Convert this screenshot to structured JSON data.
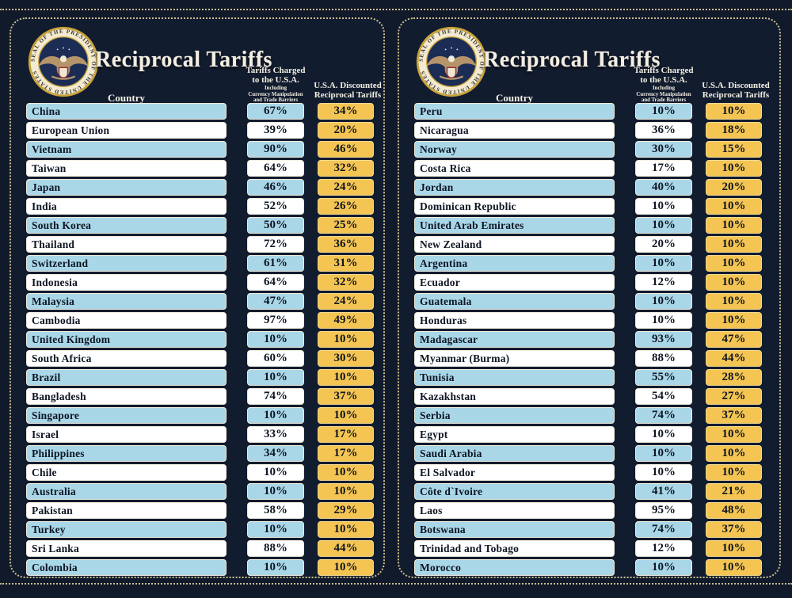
{
  "board": {
    "title": "Reciprocal Tariffs",
    "col_country": "Country",
    "col_charged_line1": "Tariffs Charged",
    "col_charged_line2": "to the U.S.A.",
    "col_charged_sub1": "Including",
    "col_charged_sub2": "Currency Manipulation",
    "col_charged_sub3": "and Trade Barriers",
    "col_discount_line1": "U.S.A. Discounted",
    "col_discount_line2": "Reciprocal Tariffs",
    "seal_text": "SEAL OF THE PRESIDENT OF THE UNITED STATES",
    "colors": {
      "background": "#101a2b",
      "row_blue": "#a9d7e8",
      "row_white": "#ffffff",
      "cell_yellow": "#f4c552",
      "border_gold": "#cdbd8d",
      "text_dark": "#0e1523",
      "title_cream": "#f2eee3"
    }
  },
  "chart_data": {
    "type": "table",
    "title": "Reciprocal Tariffs",
    "columns": [
      "Country",
      "Tariffs Charged to the U.S.A. Including Currency Manipulation and Trade Barriers",
      "U.S.A. Discounted Reciprocal Tariffs"
    ],
    "units": "percent",
    "panels": [
      {
        "rows": [
          [
            "China",
            67,
            34
          ],
          [
            "European Union",
            39,
            20
          ],
          [
            "Vietnam",
            90,
            46
          ],
          [
            "Taiwan",
            64,
            32
          ],
          [
            "Japan",
            46,
            24
          ],
          [
            "India",
            52,
            26
          ],
          [
            "South Korea",
            50,
            25
          ],
          [
            "Thailand",
            72,
            36
          ],
          [
            "Switzerland",
            61,
            31
          ],
          [
            "Indonesia",
            64,
            32
          ],
          [
            "Malaysia",
            47,
            24
          ],
          [
            "Cambodia",
            97,
            49
          ],
          [
            "United Kingdom",
            10,
            10
          ],
          [
            "South Africa",
            60,
            30
          ],
          [
            "Brazil",
            10,
            10
          ],
          [
            "Bangladesh",
            74,
            37
          ],
          [
            "Singapore",
            10,
            10
          ],
          [
            "Israel",
            33,
            17
          ],
          [
            "Philippines",
            34,
            17
          ],
          [
            "Chile",
            10,
            10
          ],
          [
            "Australia",
            10,
            10
          ],
          [
            "Pakistan",
            58,
            29
          ],
          [
            "Turkey",
            10,
            10
          ],
          [
            "Sri Lanka",
            88,
            44
          ],
          [
            "Colombia",
            10,
            10
          ]
        ]
      },
      {
        "rows": [
          [
            "Peru",
            10,
            10
          ],
          [
            "Nicaragua",
            36,
            18
          ],
          [
            "Norway",
            30,
            15
          ],
          [
            "Costa Rica",
            17,
            10
          ],
          [
            "Jordan",
            40,
            20
          ],
          [
            "Dominican Republic",
            10,
            10
          ],
          [
            "United Arab Emirates",
            10,
            10
          ],
          [
            "New Zealand",
            20,
            10
          ],
          [
            "Argentina",
            10,
            10
          ],
          [
            "Ecuador",
            12,
            10
          ],
          [
            "Guatemala",
            10,
            10
          ],
          [
            "Honduras",
            10,
            10
          ],
          [
            "Madagascar",
            93,
            47
          ],
          [
            "Myanmar (Burma)",
            88,
            44
          ],
          [
            "Tunisia",
            55,
            28
          ],
          [
            "Kazakhstan",
            54,
            27
          ],
          [
            "Serbia",
            74,
            37
          ],
          [
            "Egypt",
            10,
            10
          ],
          [
            "Saudi Arabia",
            10,
            10
          ],
          [
            "El Salvador",
            10,
            10
          ],
          [
            "Côte d`Ivoire",
            41,
            21
          ],
          [
            "Laos",
            95,
            48
          ],
          [
            "Botswana",
            74,
            37
          ],
          [
            "Trinidad and Tobago",
            12,
            10
          ],
          [
            "Morocco",
            10,
            10
          ]
        ]
      }
    ]
  }
}
